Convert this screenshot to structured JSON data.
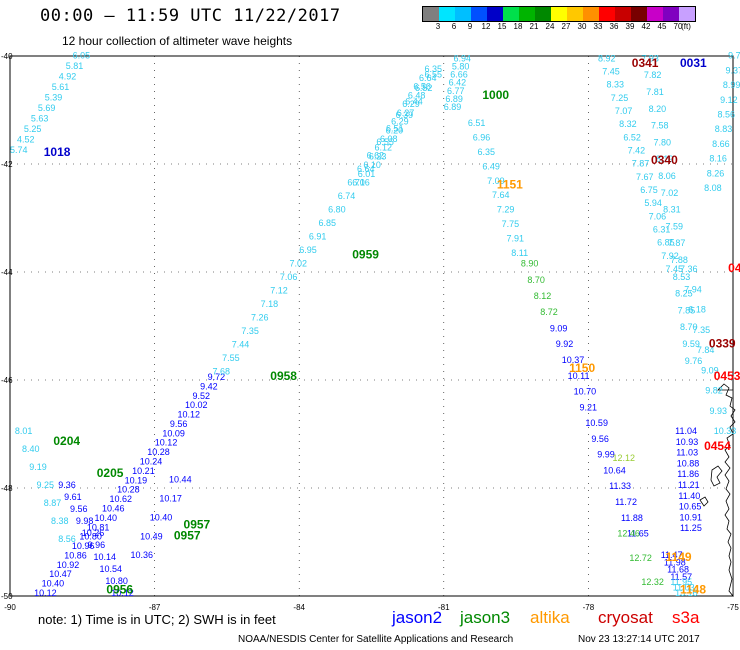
{
  "header": {
    "title": "00:00 – 11:59 UTC 11/22/2017",
    "subtitle": "12 hour collection of altimeter wave heights"
  },
  "colorbar": {
    "colors": [
      "#7f7f7f",
      "#00e5ff",
      "#00bfff",
      "#0050ff",
      "#0000c8",
      "#00e04b",
      "#00b400",
      "#008800",
      "#ffff00",
      "#ffc800",
      "#ff9000",
      "#ff0000",
      "#c80000",
      "#780000",
      "#c800c8",
      "#8000c0",
      "#c8a0ff"
    ],
    "labels": [
      "3",
      "6",
      "9",
      "12",
      "15",
      "18",
      "21",
      "24",
      "27",
      "30",
      "33",
      "36",
      "39",
      "42",
      "45",
      "70",
      "(ft)"
    ]
  },
  "chart_data": {
    "type": "scatter",
    "title": "00:00 – 11:59 UTC 11/22/2017",
    "subtitle": "12 hour collection of altimeter wave heights",
    "xlim": [
      -90,
      -75
    ],
    "ylim": [
      -50,
      -40
    ],
    "x_ticks": [
      "-90",
      "-87",
      "-84",
      "-81",
      "-78",
      "-75"
    ],
    "y_ticks": [
      "-40",
      "-42",
      "-44",
      "-46",
      "-48",
      "-50"
    ],
    "units": "SWH in feet, time in UTC",
    "series": [
      {
        "name": "jason2",
        "color": "#0000ff"
      },
      {
        "name": "jason3",
        "color": "#008800"
      },
      {
        "name": "altika",
        "color": "#ff9900"
      },
      {
        "name": "cryosat",
        "color": "#cc0000"
      },
      {
        "name": "s3a",
        "color": "#ff0000"
      }
    ],
    "tracks": [
      {
        "sat": "s3a",
        "start": [
          -88.7,
          -40.05
        ],
        "end": [
          -90.0,
          -41.8
        ],
        "values": [
          "6.05",
          "5.81",
          "4.92",
          "5.61",
          "5.39",
          "5.69",
          "5.63",
          "5.25",
          "4.52",
          "5.74"
        ]
      },
      {
        "sat": "s3a",
        "start": [
          -89.9,
          -47.0
        ],
        "end": [
          -89.0,
          -49.0
        ],
        "values": [
          "8.01",
          "8.40",
          "9.19",
          "9.25",
          "8.87",
          "8.38",
          "8.56"
        ]
      },
      {
        "sat": "s3a",
        "start": [
          -81.4,
          -40.3
        ],
        "end": [
          -82.9,
          -42.4
        ],
        "values": [
          "6.35",
          "6.64",
          "6.56",
          "6.48",
          "6.29",
          "6.27",
          "6.29",
          "6.20",
          "6.08",
          "6.12",
          "6.23",
          "6.10",
          "6.01",
          "6.06"
        ]
      },
      {
        "sat": "s3a",
        "start": [
          -80.8,
          -40.1
        ],
        "end": [
          -81.0,
          -41.0
        ],
        "values": [
          "6.94",
          "5.80",
          "6.66",
          "6.42",
          "6.77",
          "6.89",
          "6.89"
        ]
      },
      {
        "sat": "s3a",
        "start": [
          -80.5,
          -41.3
        ],
        "end": [
          -79.6,
          -43.7
        ],
        "values": [
          "6.51",
          "6.96",
          "6.35",
          "6.49",
          "7.09",
          "7.64",
          "7.29",
          "7.75",
          "7.91",
          "8.11"
        ]
      },
      {
        "sat": "jason3",
        "start": [
          -79.4,
          -43.9
        ],
        "end": [
          -79.0,
          -44.8
        ],
        "values": [
          "8.90",
          "8.70",
          "8.12",
          "8.72"
        ]
      },
      {
        "sat": "jason2",
        "start": [
          -78.8,
          -45.1
        ],
        "end": [
          -77.2,
          -48.9
        ],
        "values": [
          "9.09",
          "9.92",
          "10.37",
          "10.11",
          "10.70",
          "9.21",
          "10.59",
          "9.56",
          "9.99",
          "10.64",
          "11.33",
          "11.72",
          "11.88",
          "11.65"
        ]
      },
      {
        "sat": "altika",
        "start": [
          -77.5,
          -47.5
        ],
        "end": [
          -77.3,
          -48.6
        ],
        "values": [
          "12.12"
        ]
      },
      {
        "sat": "jason3",
        "start": [
          -77.4,
          -48.9
        ],
        "end": [
          -76.9,
          -49.8
        ],
        "values": [
          "12.46",
          "12.72",
          "12.32"
        ]
      },
      {
        "sat": "s3a",
        "start": [
          -77.8,
          -40.1
        ],
        "end": [
          -76.4,
          -44.0
        ],
        "values": [
          "8.92",
          "7.45",
          "8.33",
          "7.25",
          "7.07",
          "8.32",
          "6.52",
          "7.42",
          "7.87",
          "7.67",
          "6.75",
          "5.94",
          "7.06",
          "6.31",
          "6.85",
          "7.92",
          "7.45"
        ]
      },
      {
        "sat": "s3a",
        "start": [
          -76.9,
          -40.1
        ],
        "end": [
          -76.0,
          -45.7
        ],
        "values": [
          "7.93",
          "7.82",
          "7.81",
          "8.20",
          "7.58",
          "7.80",
          "8.19",
          "8.06",
          "7.02",
          "8.31",
          "7.59",
          "7.87",
          "7.88",
          "8.53",
          "8.25",
          "7.85",
          "8.70",
          "9.59",
          "9.76"
        ]
      },
      {
        "sat": "s3a",
        "start": [
          -75.1,
          -40.05
        ],
        "end": [
          -75.6,
          -42.5
        ],
        "values": [
          "9.79",
          "9.37",
          "8.99",
          "9.12",
          "8.56",
          "8.83",
          "8.66",
          "8.16",
          "8.26",
          "8.08"
        ]
      },
      {
        "sat": "s3a",
        "start": [
          -76.1,
          -44.0
        ],
        "end": [
          -75.4,
          -47.0
        ],
        "values": [
          "7.36",
          "7.94",
          "6.18",
          "7.35",
          "7.84",
          "9.09",
          "9.82",
          "9.93",
          "10.33"
        ]
      },
      {
        "sat": "jason2",
        "start": [
          -76.2,
          -47.0
        ],
        "end": [
          -76.1,
          -48.8
        ],
        "values": [
          "11.04",
          "10.93",
          "11.03",
          "10.88",
          "11.86",
          "11.21",
          "11.40",
          "10.65",
          "10.91",
          "11.25"
        ]
      },
      {
        "sat": "jason2",
        "start": [
          -76.5,
          -49.3
        ],
        "end": [
          -76.3,
          -49.7
        ],
        "values": [
          "11.47",
          "11.98",
          "11.68",
          "11.57"
        ]
      },
      {
        "sat": "s3a",
        "start": [
          -76.3,
          -49.8
        ],
        "end": [
          -76.2,
          -50.0
        ],
        "values": [
          "11.95",
          "11.03",
          "13.16"
        ]
      },
      {
        "sat": "jason2",
        "start": [
          -85.9,
          -46.0
        ],
        "end": [
          -89.5,
          -50.0
        ],
        "values": [
          "9.72",
          "9.42",
          "9.52",
          "10.02",
          "10.12",
          "9.56",
          "10.09",
          "10.12",
          "10.28",
          "10.24",
          "10.21",
          "10.19",
          "10.28",
          "10.62",
          "10.46",
          "10.40",
          "10.81",
          "10.80",
          "10.96",
          "10.86",
          "10.92",
          "10.47",
          "10.40",
          "10.12"
        ]
      },
      {
        "sat": "s3a",
        "start": [
          -81.4,
          -40.4
        ],
        "end": [
          -85.8,
          -45.9
        ],
        "values": [
          "6.55",
          "6.52",
          "6.44",
          "6.39",
          "6.51",
          "6.55",
          "6.62",
          "6.64",
          "6.71",
          "6.74",
          "6.80",
          "6.85",
          "6.91",
          "6.95",
          "7.02",
          "7.06",
          "7.12",
          "7.18",
          "7.26",
          "7.35",
          "7.44",
          "7.55",
          "7.68"
        ]
      },
      {
        "sat": "jason2",
        "start": [
          -89.0,
          -48.0
        ],
        "end": [
          -87.9,
          -50.0
        ],
        "values": [
          "9.36",
          "9.61",
          "9.56",
          "9.98",
          "10.26",
          "9.96",
          "10.14",
          "10.54",
          "10.80",
          "10.12"
        ]
      },
      {
        "sat": "jason2",
        "start": [
          -86.7,
          -47.9
        ],
        "end": [
          -87.5,
          -49.3
        ],
        "values": [
          "10.44",
          "10.17",
          "10.40",
          "10.49",
          "10.36"
        ]
      }
    ],
    "time_labels": [
      {
        "text": "1018",
        "sat": "jason2",
        "x": -89.3,
        "y": -41.85
      },
      {
        "text": "1000",
        "sat": "jason3",
        "x": -80.2,
        "y": -40.8
      },
      {
        "text": "0341",
        "sat": "cryosat",
        "x": -77.1,
        "y": -40.2
      },
      {
        "text": "0031",
        "sat": "jason2",
        "x": -76.1,
        "y": -40.2
      },
      {
        "text": "0340",
        "sat": "cryosat",
        "x": -76.7,
        "y": -42.0
      },
      {
        "text": "1151",
        "sat": "altika",
        "x": -79.9,
        "y": -42.45
      },
      {
        "text": "0959",
        "sat": "jason3",
        "x": -82.9,
        "y": -43.75
      },
      {
        "text": "04",
        "sat": "s3a",
        "x": -75.1,
        "y": -44.0
      },
      {
        "text": "0339",
        "sat": "cryosat",
        "x": -75.5,
        "y": -45.4
      },
      {
        "text": "1150",
        "sat": "altika",
        "x": -78.4,
        "y": -45.85
      },
      {
        "text": "0453",
        "sat": "s3a",
        "x": -75.4,
        "y": -46.0
      },
      {
        "text": "0958",
        "sat": "jason3",
        "x": -84.6,
        "y": -46.0
      },
      {
        "text": "0454",
        "sat": "s3a",
        "x": -75.6,
        "y": -47.3
      },
      {
        "text": "0204",
        "sat": "jason3",
        "x": -89.1,
        "y": -47.2
      },
      {
        "text": "0205",
        "sat": "jason3",
        "x": -88.2,
        "y": -47.8
      },
      {
        "text": "0957",
        "sat": "jason3",
        "x": -86.4,
        "y": -48.75
      },
      {
        "text": "0957",
        "sat": "jason3",
        "x": -86.6,
        "y": -48.95
      },
      {
        "text": "1149",
        "sat": "altika",
        "x": -76.4,
        "y": -49.35
      },
      {
        "text": "1148",
        "sat": "altika",
        "x": -76.1,
        "y": -49.95
      },
      {
        "text": "0956",
        "sat": "jason3",
        "x": -88.0,
        "y": -49.95
      }
    ]
  },
  "legend": {
    "note": "note:  1) Time is in UTC;  2) SWH is in feet",
    "items": [
      {
        "label": "jason2",
        "color": "#0000ff"
      },
      {
        "label": "jason3",
        "color": "#008800"
      },
      {
        "label": "altika",
        "color": "#ff9900"
      },
      {
        "label": "cryosat",
        "color": "#cc0000"
      },
      {
        "label": "s3a",
        "color": "#ff0000"
      }
    ]
  },
  "footer": {
    "credit": "NOAA/NESDIS Center for Satellite Applications and Research",
    "timestamp": "Nov 23 13:27:14 UTC 2017"
  }
}
